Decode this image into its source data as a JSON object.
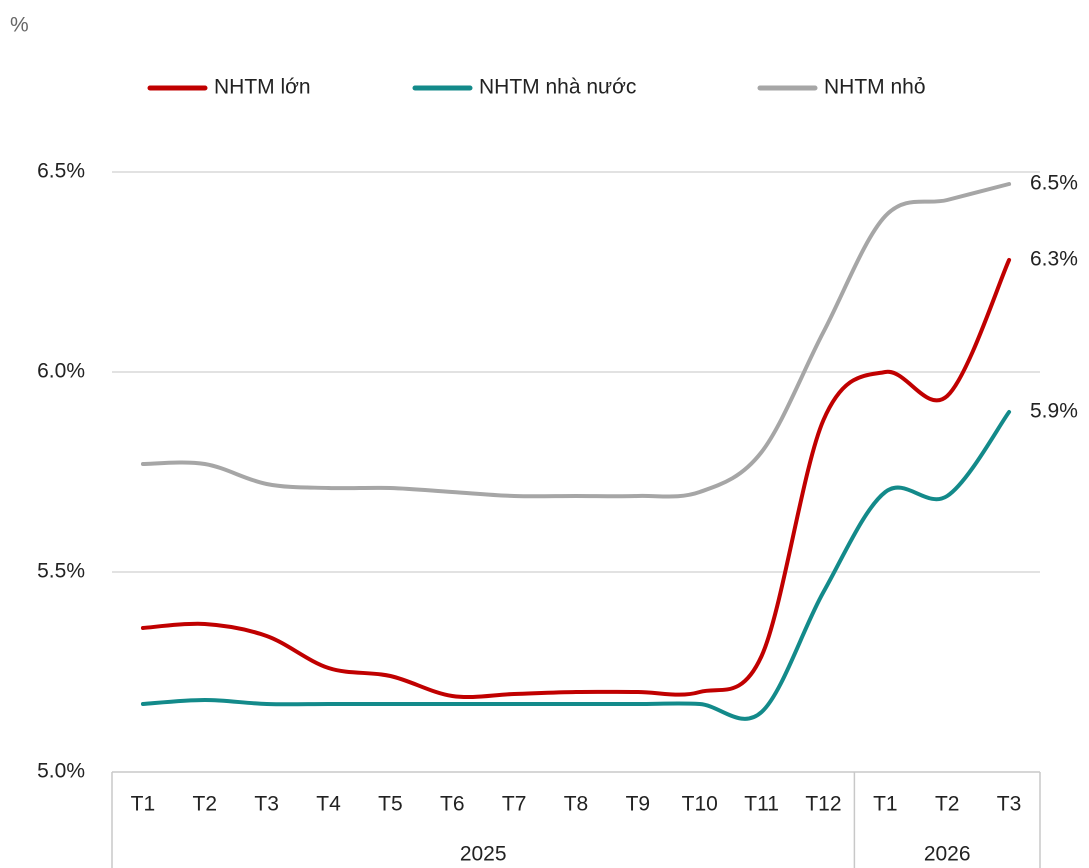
{
  "chart_data": {
    "type": "line",
    "y_unit": "%",
    "categories": [
      "T1",
      "T2",
      "T3",
      "T4",
      "T5",
      "T6",
      "T7",
      "T8",
      "T9",
      "T10",
      "T11",
      "T12",
      "T1",
      "T2",
      "T3"
    ],
    "groups": [
      {
        "label": "2025",
        "count": 12
      },
      {
        "label": "2026",
        "count": 3
      }
    ],
    "series": [
      {
        "name": "NHTM lớn",
        "color": "#c00000",
        "values": [
          5.36,
          5.37,
          5.34,
          5.26,
          5.24,
          5.19,
          5.195,
          5.2,
          5.2,
          5.2,
          5.29,
          5.88,
          6.0,
          5.94,
          6.28
        ],
        "value_labels": {
          "14": "6.3%"
        }
      },
      {
        "name": "NHTM nhà nước",
        "color": "#138a8a",
        "values": [
          5.17,
          5.18,
          5.17,
          5.17,
          5.17,
          5.17,
          5.17,
          5.17,
          5.17,
          5.17,
          5.15,
          5.45,
          5.7,
          5.69,
          5.9
        ],
        "value_labels": {
          "14": "5.9%"
        }
      },
      {
        "name": "NHTM nhỏ",
        "color": "#a6a6a6",
        "values": [
          5.77,
          5.77,
          5.72,
          5.71,
          5.71,
          5.7,
          5.69,
          5.69,
          5.69,
          5.7,
          5.8,
          6.1,
          6.39,
          6.43,
          6.47
        ],
        "value_labels": {
          "14": "6.5%"
        }
      }
    ],
    "ylim": [
      5.0,
      6.5
    ],
    "yticks": [
      {
        "value": 5.0,
        "label": "5.0%"
      },
      {
        "value": 5.5,
        "label": "5.5%"
      },
      {
        "value": 6.0,
        "label": "6.0%"
      },
      {
        "value": 6.5,
        "label": "6.5%"
      }
    ],
    "grid": true,
    "legend": "top"
  }
}
